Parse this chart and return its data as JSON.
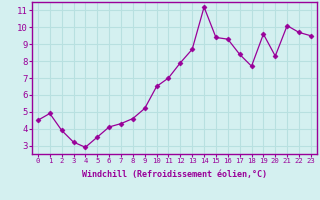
{
  "x": [
    0,
    1,
    2,
    3,
    4,
    5,
    6,
    7,
    8,
    9,
    10,
    11,
    12,
    13,
    14,
    15,
    16,
    17,
    18,
    19,
    20,
    21,
    22,
    23
  ],
  "y": [
    4.5,
    4.9,
    3.9,
    3.2,
    2.9,
    3.5,
    4.1,
    4.3,
    4.6,
    5.2,
    6.5,
    7.0,
    7.9,
    8.7,
    11.2,
    9.4,
    9.3,
    8.4,
    7.7,
    9.6,
    8.3,
    10.1,
    9.7,
    9.5
  ],
  "line_color": "#990099",
  "marker": "D",
  "marker_size": 2.5,
  "xlabel": "Windchill (Refroidissement éolien,°C)",
  "ylim": [
    2.5,
    11.5
  ],
  "xlim": [
    -0.5,
    23.5
  ],
  "yticks": [
    3,
    4,
    5,
    6,
    7,
    8,
    9,
    10,
    11
  ],
  "xticks": [
    0,
    1,
    2,
    3,
    4,
    5,
    6,
    7,
    8,
    9,
    10,
    11,
    12,
    13,
    14,
    15,
    16,
    17,
    18,
    19,
    20,
    21,
    22,
    23
  ],
  "bg_color": "#d4f0f0",
  "grid_color": "#b8e0e0",
  "axis_color": "#990099",
  "tick_color": "#990099",
  "label_color": "#990099",
  "font_family": "monospace",
  "xlabel_fontsize": 6.0,
  "ytick_fontsize": 6.5,
  "xtick_fontsize": 5.2
}
